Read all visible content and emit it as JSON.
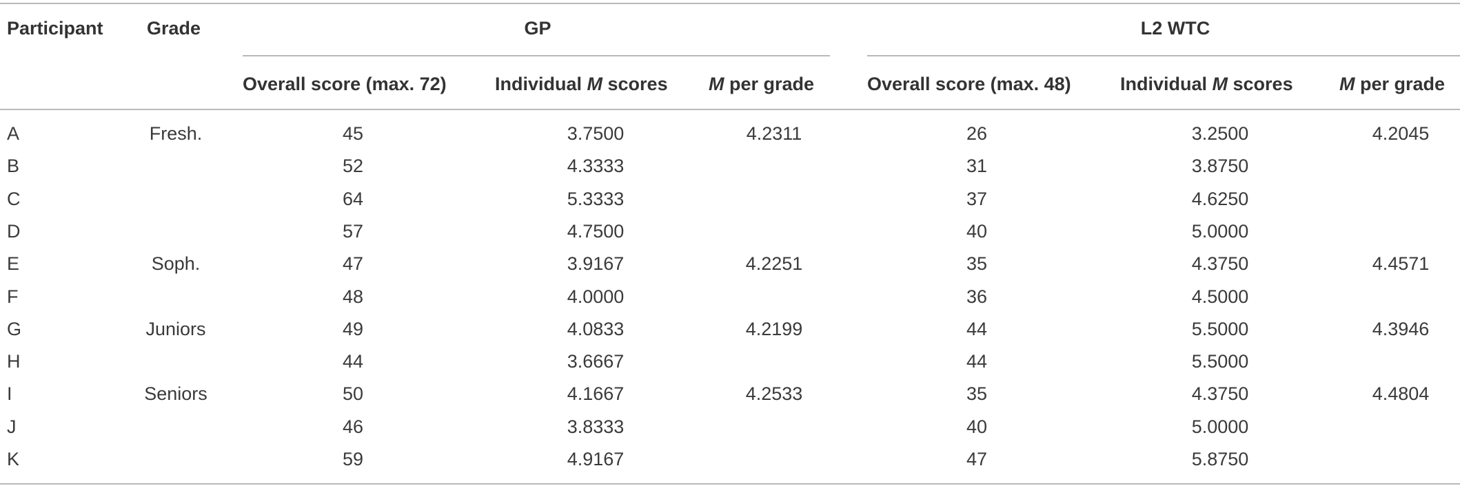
{
  "headers": {
    "participant": "Participant",
    "grade": "Grade",
    "gp": "GP",
    "l2wtc": "L2 WTC",
    "gp_overall": "Overall score (max. 72)",
    "gp_individual_pre": "Individual ",
    "gp_individual_m": "M",
    "gp_individual_post": " scores",
    "gp_pergrade_m": "M",
    "gp_pergrade_post": " per grade",
    "l2_overall": "Overall score (max. 48)",
    "l2_individual_pre": "Individual ",
    "l2_individual_m": "M",
    "l2_individual_post": " scores",
    "l2_pergrade_m": "M",
    "l2_pergrade_post": " per grade"
  },
  "rows": [
    {
      "participant": "A",
      "grade": "Fresh.",
      "gp_overall": "45",
      "gp_individual": "3.7500",
      "gp_pergrade": "4.2311",
      "l2_overall": "26",
      "l2_individual": "3.2500",
      "l2_pergrade": "4.2045"
    },
    {
      "participant": "B",
      "grade": "",
      "gp_overall": "52",
      "gp_individual": "4.3333",
      "gp_pergrade": "",
      "l2_overall": "31",
      "l2_individual": "3.8750",
      "l2_pergrade": ""
    },
    {
      "participant": "C",
      "grade": "",
      "gp_overall": "64",
      "gp_individual": "5.3333",
      "gp_pergrade": "",
      "l2_overall": "37",
      "l2_individual": "4.6250",
      "l2_pergrade": ""
    },
    {
      "participant": "D",
      "grade": "",
      "gp_overall": "57",
      "gp_individual": "4.7500",
      "gp_pergrade": "",
      "l2_overall": "40",
      "l2_individual": "5.0000",
      "l2_pergrade": ""
    },
    {
      "participant": "E",
      "grade": "Soph.",
      "gp_overall": "47",
      "gp_individual": "3.9167",
      "gp_pergrade": "4.2251",
      "l2_overall": "35",
      "l2_individual": "4.3750",
      "l2_pergrade": "4.4571"
    },
    {
      "participant": "F",
      "grade": "",
      "gp_overall": "48",
      "gp_individual": "4.0000",
      "gp_pergrade": "",
      "l2_overall": "36",
      "l2_individual": "4.5000",
      "l2_pergrade": ""
    },
    {
      "participant": "G",
      "grade": "Juniors",
      "gp_overall": "49",
      "gp_individual": "4.0833",
      "gp_pergrade": "4.2199",
      "l2_overall": "44",
      "l2_individual": "5.5000",
      "l2_pergrade": "4.3946"
    },
    {
      "participant": "H",
      "grade": "",
      "gp_overall": "44",
      "gp_individual": "3.6667",
      "gp_pergrade": "",
      "l2_overall": "44",
      "l2_individual": "5.5000",
      "l2_pergrade": ""
    },
    {
      "participant": "I",
      "grade": "Seniors",
      "gp_overall": "50",
      "gp_individual": "4.1667",
      "gp_pergrade": "4.2533",
      "l2_overall": "35",
      "l2_individual": "4.3750",
      "l2_pergrade": "4.4804"
    },
    {
      "participant": "J",
      "grade": "",
      "gp_overall": "46",
      "gp_individual": "3.8333",
      "gp_pergrade": "",
      "l2_overall": "40",
      "l2_individual": "5.0000",
      "l2_pergrade": ""
    },
    {
      "participant": "K",
      "grade": "",
      "gp_overall": "59",
      "gp_individual": "4.9167",
      "gp_pergrade": "",
      "l2_overall": "47",
      "l2_individual": "5.8750",
      "l2_pergrade": ""
    }
  ]
}
